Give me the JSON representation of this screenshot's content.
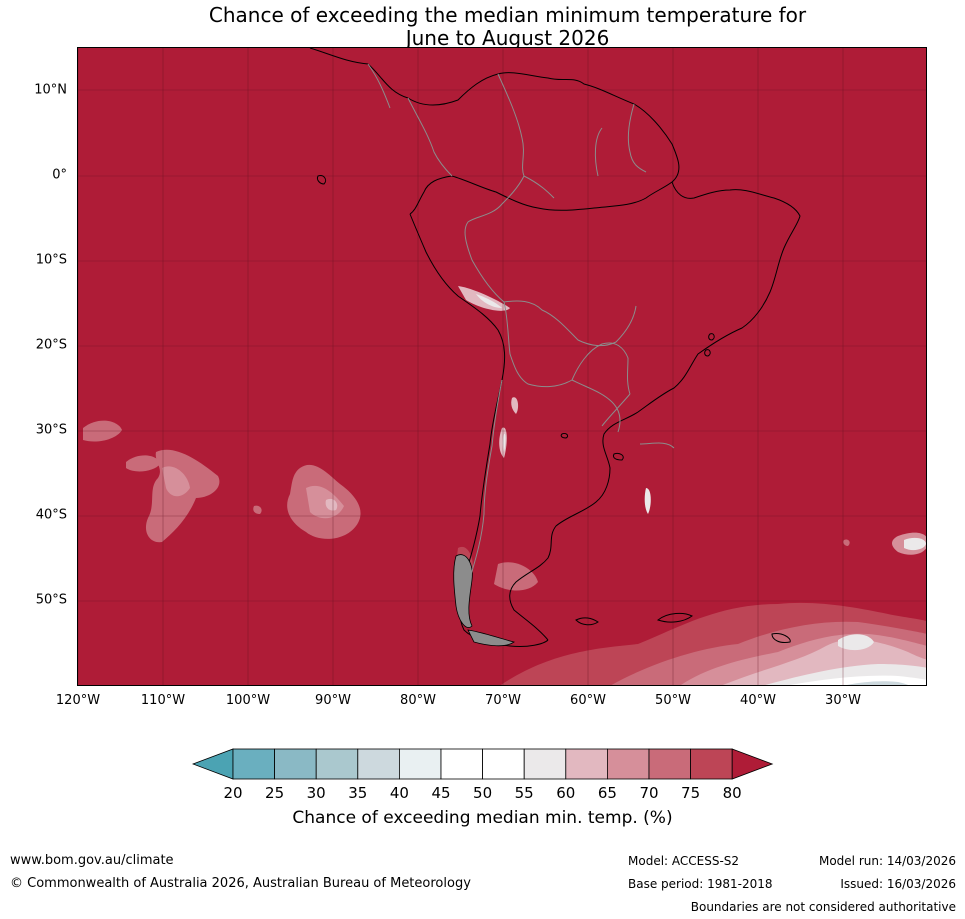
{
  "title": {
    "line1": "Chance of exceeding the median minimum temperature for",
    "line2": "June to August 2026"
  },
  "map": {
    "background_color": "#af1c37",
    "latitude_labels": [
      "10°N",
      "0°",
      "10°S",
      "20°S",
      "30°S",
      "40°S",
      "50°S"
    ],
    "longitude_labels": [
      "120°W",
      "110°W",
      "100°W",
      "90°W",
      "80°W",
      "70°W",
      "60°W",
      "50°W",
      "40°W",
      "30°W"
    ]
  },
  "colorbar": {
    "label": "Chance of exceeding median min. temp. (%)",
    "ticks": [
      "20",
      "25",
      "30",
      "35",
      "40",
      "45",
      "50",
      "55",
      "60",
      "65",
      "70",
      "75",
      "80"
    ],
    "colors": [
      "#4ba3b3",
      "#6aafbf",
      "#8ab9c5",
      "#aac8ce",
      "#cdd9de",
      "#e9f0f2",
      "#ffffff",
      "#ffffff",
      "#ebe9ea",
      "#e2b8c0",
      "#d68f9a",
      "#c96b79",
      "#bd4556",
      "#af1c37"
    ]
  },
  "footer": {
    "website": "www.bom.gov.au/climate",
    "copyright": "© Commonwealth of Australia 2026, Australian Bureau of Meteorology",
    "model": "Model: ACCESS-S2",
    "base_period": "Base period: 1981-2018",
    "model_run": "Model run: 14/03/2026",
    "issued": "Issued: 16/03/2026",
    "disclaimer": "Boundaries are not considered authoritative"
  }
}
